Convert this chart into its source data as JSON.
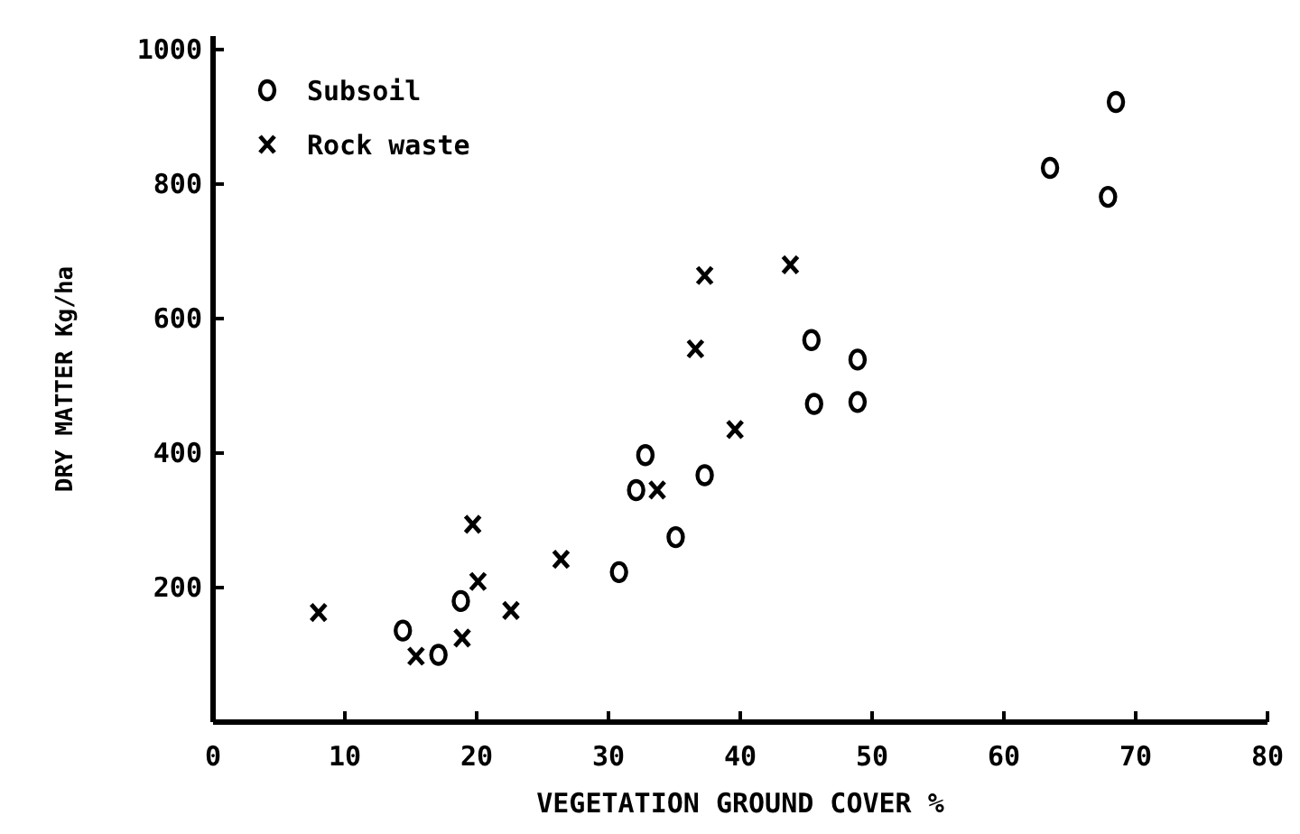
{
  "chart_data": {
    "type": "scatter",
    "xlabel": "VEGETATION GROUND COVER %",
    "ylabel": "DRY MATTER Kg/ha",
    "xlim": [
      0,
      80
    ],
    "xticks": [
      0,
      10,
      20,
      30,
      40,
      50,
      60,
      70,
      80
    ],
    "ylim": [
      0,
      1020
    ],
    "yticks": [
      200,
      400,
      600,
      800,
      1000
    ],
    "grid": false,
    "legend": "top left",
    "series": [
      {
        "name": "Subsoil",
        "color": "#000000",
        "marker": "circle",
        "x": [
          14.4,
          17.1,
          18.8,
          30.8,
          32.1,
          32.8,
          35.1,
          37.3,
          45.4,
          45.6,
          48.9,
          48.9,
          63.5,
          67.9,
          68.5
        ],
        "values": [
          136,
          100,
          180,
          223,
          345,
          397,
          275,
          367,
          568,
          473,
          539,
          476,
          824,
          781,
          922
        ]
      },
      {
        "name": "Rock waste",
        "color": "#000000",
        "marker": "cross",
        "x": [
          8.0,
          15.4,
          18.9,
          19.7,
          20.1,
          22.6,
          26.4,
          33.7,
          36.6,
          37.3,
          39.6,
          43.8
        ],
        "values": [
          163,
          98,
          125,
          294,
          209,
          166,
          242,
          345,
          555,
          664,
          435,
          680
        ]
      }
    ]
  }
}
